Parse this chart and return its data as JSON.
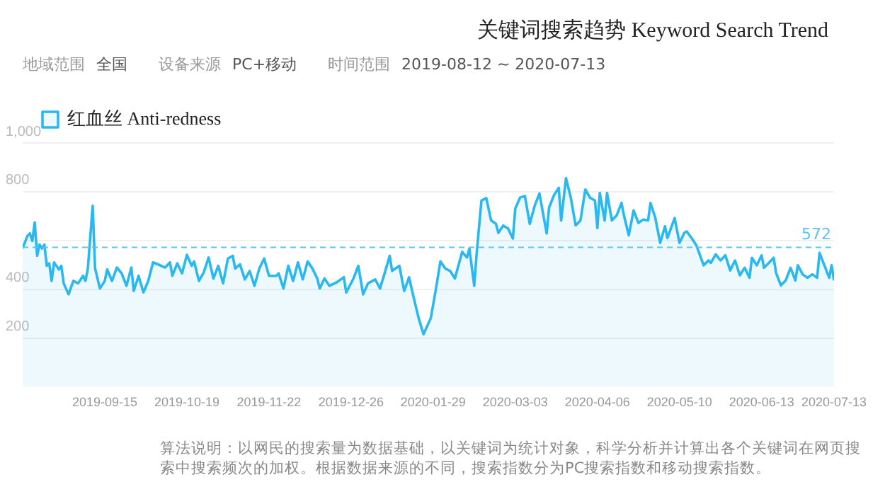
{
  "chart_data": {
    "type": "area",
    "title": "关键词搜索趋势 Keyword Search Trend",
    "annotations": [
      "地域范围",
      "全国",
      "设备来源",
      "PC+移动",
      "时间范围",
      "2019-08-12 ~ 2020-07-13",
      "算法说明：以网民的搜索量为数据基础，以关键词为统计对象，科学分析并计算出各个关键词在网页搜索中搜索频次的加权。根据数据来源的不同，搜索指数分为PC搜索指数和移动搜索指数。"
    ],
    "x": [
      "2019-08-12",
      "2019-08-14",
      "2019-08-15",
      "2019-08-16",
      "2019-08-17",
      "2019-08-18",
      "2019-08-19",
      "2019-08-20",
      "2019-08-21",
      "2019-08-22",
      "2019-08-23",
      "2019-08-24",
      "2019-08-25",
      "2019-08-27",
      "2019-08-28",
      "2019-08-29",
      "2019-08-31",
      "2019-09-02",
      "2019-09-04",
      "2019-09-06",
      "2019-09-07",
      "2019-09-08",
      "2019-09-10",
      "2019-09-11",
      "2019-09-13",
      "2019-09-15",
      "2019-09-16",
      "2019-09-18",
      "2019-09-20",
      "2019-09-22",
      "2019-09-24",
      "2019-09-26",
      "2019-09-27",
      "2019-09-29",
      "2019-10-01",
      "2019-10-03",
      "2019-10-05",
      "2019-10-07",
      "2019-10-10",
      "2019-10-12",
      "2019-10-13",
      "2019-10-15",
      "2019-10-17",
      "2019-10-19",
      "2019-10-21",
      "2019-10-22",
      "2019-10-24",
      "2019-10-26",
      "2019-10-28",
      "2019-10-30",
      "2019-11-01",
      "2019-11-03",
      "2019-11-05",
      "2019-11-07",
      "2019-11-08",
      "2019-11-10",
      "2019-11-12",
      "2019-11-14",
      "2019-11-16",
      "2019-11-18",
      "2019-11-20",
      "2019-11-22",
      "2019-11-25",
      "2019-11-26",
      "2019-11-28",
      "2019-11-30",
      "2019-12-02",
      "2019-12-04",
      "2019-12-06",
      "2019-12-08",
      "2019-12-10",
      "2019-12-12",
      "2019-12-13",
      "2019-12-15",
      "2019-12-17",
      "2019-12-20",
      "2019-12-23",
      "2019-12-24",
      "2019-12-27",
      "2019-12-29",
      "2019-12-31",
      "2020-01-02",
      "2020-01-05",
      "2020-01-07",
      "2020-01-09",
      "2020-01-11",
      "2020-01-12",
      "2020-01-15",
      "2020-01-17",
      "2020-01-19",
      "2020-01-21",
      "2020-01-23",
      "2020-01-25",
      "2020-01-28",
      "2020-01-30",
      "2020-02-01",
      "2020-02-03",
      "2020-02-05",
      "2020-02-07",
      "2020-02-10",
      "2020-02-12",
      "2020-02-13",
      "2020-02-15",
      "2020-02-16",
      "2020-02-18",
      "2020-02-20",
      "2020-02-22",
      "2020-02-24",
      "2020-02-25",
      "2020-02-27",
      "2020-02-29",
      "2020-03-02",
      "2020-03-03",
      "2020-03-05",
      "2020-03-07",
      "2020-03-09",
      "2020-03-11",
      "2020-03-13",
      "2020-03-16",
      "2020-03-17",
      "2020-03-19",
      "2020-03-21",
      "2020-03-22",
      "2020-03-24",
      "2020-03-26",
      "2020-03-28",
      "2020-03-30",
      "2020-04-01",
      "2020-04-03",
      "2020-04-05",
      "2020-04-06",
      "2020-04-07",
      "2020-04-09",
      "2020-04-10",
      "2020-04-12",
      "2020-04-14",
      "2020-04-16",
      "2020-04-17",
      "2020-04-19",
      "2020-04-21",
      "2020-04-23",
      "2020-04-25",
      "2020-04-27",
      "2020-04-28",
      "2020-04-30",
      "2020-05-02",
      "2020-05-04",
      "2020-05-05",
      "2020-05-08",
      "2020-05-10",
      "2020-05-12",
      "2020-05-13",
      "2020-05-15",
      "2020-05-17",
      "2020-05-20",
      "2020-05-22",
      "2020-05-23",
      "2020-05-25",
      "2020-05-27",
      "2020-05-29",
      "2020-05-31",
      "2020-06-02",
      "2020-06-04",
      "2020-06-06",
      "2020-06-08",
      "2020-06-09",
      "2020-06-11",
      "2020-06-13",
      "2020-06-14",
      "2020-06-16",
      "2020-06-18",
      "2020-06-19",
      "2020-06-21",
      "2020-06-23",
      "2020-06-25",
      "2020-06-27",
      "2020-06-28",
      "2020-06-30",
      "2020-07-02",
      "2020-07-04",
      "2020-07-06",
      "2020-07-07",
      "2020-07-09",
      "2020-07-11",
      "2020-07-12",
      "2020-07-13"
    ],
    "series": [
      {
        "name": "红血丝 Anti-redness",
        "color": "#2ab8f0",
        "values": [
          568,
          619,
          629,
          598,
          674,
          537,
          583,
          567,
          583,
          496,
          506,
          434,
          510,
          481,
          496,
          424,
          379,
          434,
          424,
          455,
          434,
          485,
          742,
          485,
          403,
          434,
          481,
          434,
          489,
          465,
          414,
          489,
          393,
          455,
          387,
          434,
          510,
          502,
          489,
          510,
          455,
          506,
          465,
          541,
          496,
          514,
          434,
          469,
          530,
          444,
          496,
          424,
          526,
          537,
          485,
          502,
          440,
          475,
          414,
          485,
          526,
          455,
          455,
          465,
          403,
          496,
          434,
          510,
          440,
          514,
          485,
          444,
          403,
          444,
          414,
          428,
          449,
          387,
          444,
          496,
          379,
          424,
          440,
          403,
          469,
          537,
          475,
          496,
          393,
          449,
          363,
          281,
          215,
          281,
          393,
          514,
          485,
          475,
          444,
          553,
          530,
          567,
          414,
          547,
          764,
          774,
          682,
          668,
          631,
          661,
          649,
          608,
          731,
          776,
          782,
          668,
          741,
          793,
          629,
          735,
          785,
          816,
          682,
          856,
          775,
          662,
          682,
          809,
          775,
          764,
          651,
          795,
          682,
          795,
          682,
          703,
          754,
          703,
          621,
          723,
          672,
          686,
          682,
          754,
          692,
          590,
          658,
          610,
          692,
          590,
          631,
          637,
          610,
          580,
          498,
          518,
          508,
          543,
          518,
          539,
          477,
          518,
          457,
          488,
          447,
          529,
          498,
          539,
          488,
          508,
          529,
          467,
          416,
          436,
          488,
          436,
          498,
          461,
          447,
          461,
          447,
          549,
          498,
          447,
          498,
          436
        ]
      }
    ],
    "xlim": [
      "2019-08-12",
      "2020-07-13"
    ],
    "xticks": [
      "2019-09-15",
      "2019-10-19",
      "2019-11-22",
      "2019-12-26",
      "2020-01-29",
      "2020-03-03",
      "2020-04-06",
      "2020-05-10",
      "2020-06-13",
      "2020-07-13"
    ],
    "ylim": [
      0,
      1000
    ],
    "yticks": [
      200,
      400,
      {
        "value": 600,
        "label": null
      },
      800,
      {
        "value": 1000,
        "label": "1,000"
      }
    ],
    "ref_lines": [
      {
        "axis": "y",
        "value": 572,
        "label": "572",
        "color": "#5ec4ee",
        "line_style": "dashed"
      }
    ],
    "grid": "y",
    "legend": "top left"
  }
}
